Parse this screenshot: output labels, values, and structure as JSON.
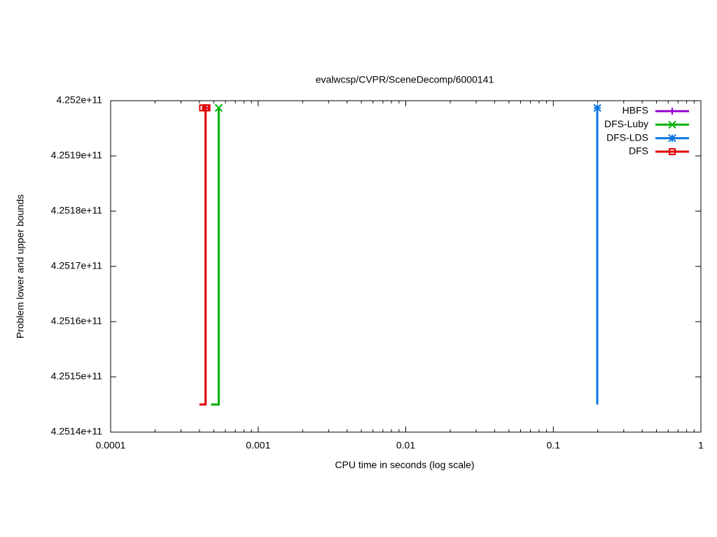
{
  "chart_data": {
    "type": "line",
    "title": "evalwcsp/CVPR/SceneDecomp/6000141",
    "x_label": "CPU time in seconds (log scale)",
    "y_label": "Problem lower and upper bounds",
    "x_log": true,
    "xlim": [
      0.0001,
      1
    ],
    "xticks": [
      0.0001,
      0.001,
      0.01,
      0.1,
      1
    ],
    "ylim": [
      425140000000,
      425200000000
    ],
    "yticks": [
      {
        "value": 425140000000,
        "label": "4.2514e+11"
      },
      {
        "value": 425150000000,
        "label": "4.2515e+11"
      },
      {
        "value": 425160000000,
        "label": "4.2516e+11"
      },
      {
        "value": 425170000000,
        "label": "4.2517e+11"
      },
      {
        "value": 425180000000,
        "label": "4.2518e+11"
      },
      {
        "value": 425190000000,
        "label": "4.2519e+11"
      },
      {
        "value": 425200000000,
        "label": "4.252e+11"
      }
    ],
    "legend": "top-right",
    "series": [
      {
        "name": "HBFS",
        "color": "#9400d3",
        "marker": "plus",
        "x": [
          0.0004,
          0.00044,
          0.00044
        ],
        "values": [
          425145000000,
          425145000000,
          425198700000
        ]
      },
      {
        "name": "DFS-Luby",
        "color": "#00b000",
        "marker": "cross",
        "x": [
          0.00048,
          0.00054,
          0.00054
        ],
        "values": [
          425145000000,
          425145000000,
          425198700000
        ]
      },
      {
        "name": "DFS-LDS",
        "color": "#0a74e0",
        "marker": "star",
        "x": [
          0.1985,
          0.1985
        ],
        "values": [
          425145000000,
          425198700000
        ]
      },
      {
        "name": "DFS",
        "color": "#e00000",
        "marker": "square",
        "x": [
          0.0004,
          0.00044,
          0.00044,
          0.00042,
          0.00045
        ],
        "values": [
          425145000000,
          425145000000,
          425198700000,
          425198700000,
          425198700000
        ]
      }
    ]
  }
}
